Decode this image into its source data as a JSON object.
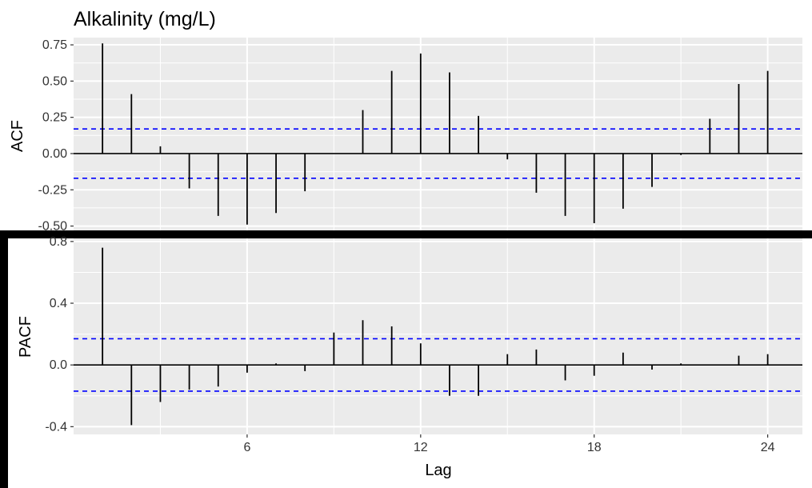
{
  "chart_data": [
    {
      "type": "bar",
      "panel": "acf",
      "title": "Alkalinity (mg/L)",
      "ylabel": "ACF",
      "xlabel": "",
      "x": [
        1,
        2,
        3,
        4,
        5,
        6,
        7,
        8,
        9,
        10,
        11,
        12,
        13,
        14,
        15,
        16,
        17,
        18,
        19,
        20,
        21,
        22,
        23,
        24
      ],
      "values": [
        0.76,
        0.41,
        0.05,
        -0.24,
        -0.43,
        -0.49,
        -0.41,
        -0.26,
        0.0,
        0.3,
        0.57,
        0.69,
        0.56,
        0.26,
        -0.04,
        -0.27,
        -0.43,
        -0.48,
        -0.38,
        -0.23,
        -0.01,
        0.24,
        0.48,
        0.57
      ],
      "confidence_band": 0.17,
      "ylim": [
        -0.53,
        0.8
      ],
      "xlim": [
        0,
        25.2
      ],
      "yticks": [
        0.75,
        0.5,
        0.25,
        0.0,
        -0.25,
        -0.5
      ],
      "ytick_labels": [
        "0.75",
        "0.50",
        "0.25",
        "0.00",
        "-0.25",
        "-0.50"
      ],
      "xticks": [
        6,
        12,
        18,
        24
      ],
      "grid": true,
      "colors": {
        "panel": "#ebebeb",
        "grid": "#ffffff",
        "bars": "#000000",
        "band": "#0000ff"
      }
    },
    {
      "type": "bar",
      "panel": "pacf",
      "title": "",
      "ylabel": "PACF",
      "xlabel": "Lag",
      "x": [
        1,
        2,
        3,
        4,
        5,
        6,
        7,
        8,
        9,
        10,
        11,
        12,
        13,
        14,
        15,
        16,
        17,
        18,
        19,
        20,
        21,
        22,
        23,
        24
      ],
      "values": [
        0.76,
        -0.39,
        -0.24,
        -0.16,
        -0.14,
        -0.05,
        0.01,
        -0.04,
        0.21,
        0.29,
        0.25,
        0.14,
        -0.2,
        -0.2,
        0.07,
        0.1,
        -0.1,
        -0.07,
        0.08,
        -0.03,
        0.01,
        0.0,
        0.06,
        0.07
      ],
      "confidence_band": 0.17,
      "ylim": [
        -0.45,
        0.82
      ],
      "xlim": [
        0,
        25.2
      ],
      "yticks": [
        0.8,
        0.4,
        0.0,
        -0.4
      ],
      "ytick_labels": [
        "0.8",
        "0.4",
        "0.0",
        "-0.4"
      ],
      "xticks": [
        6,
        12,
        18,
        24
      ],
      "xtick_labels": [
        "6",
        "12",
        "18",
        "24"
      ],
      "grid": true,
      "colors": {
        "panel": "#ebebeb",
        "grid": "#ffffff",
        "bars": "#000000",
        "band": "#0000ff"
      }
    }
  ]
}
